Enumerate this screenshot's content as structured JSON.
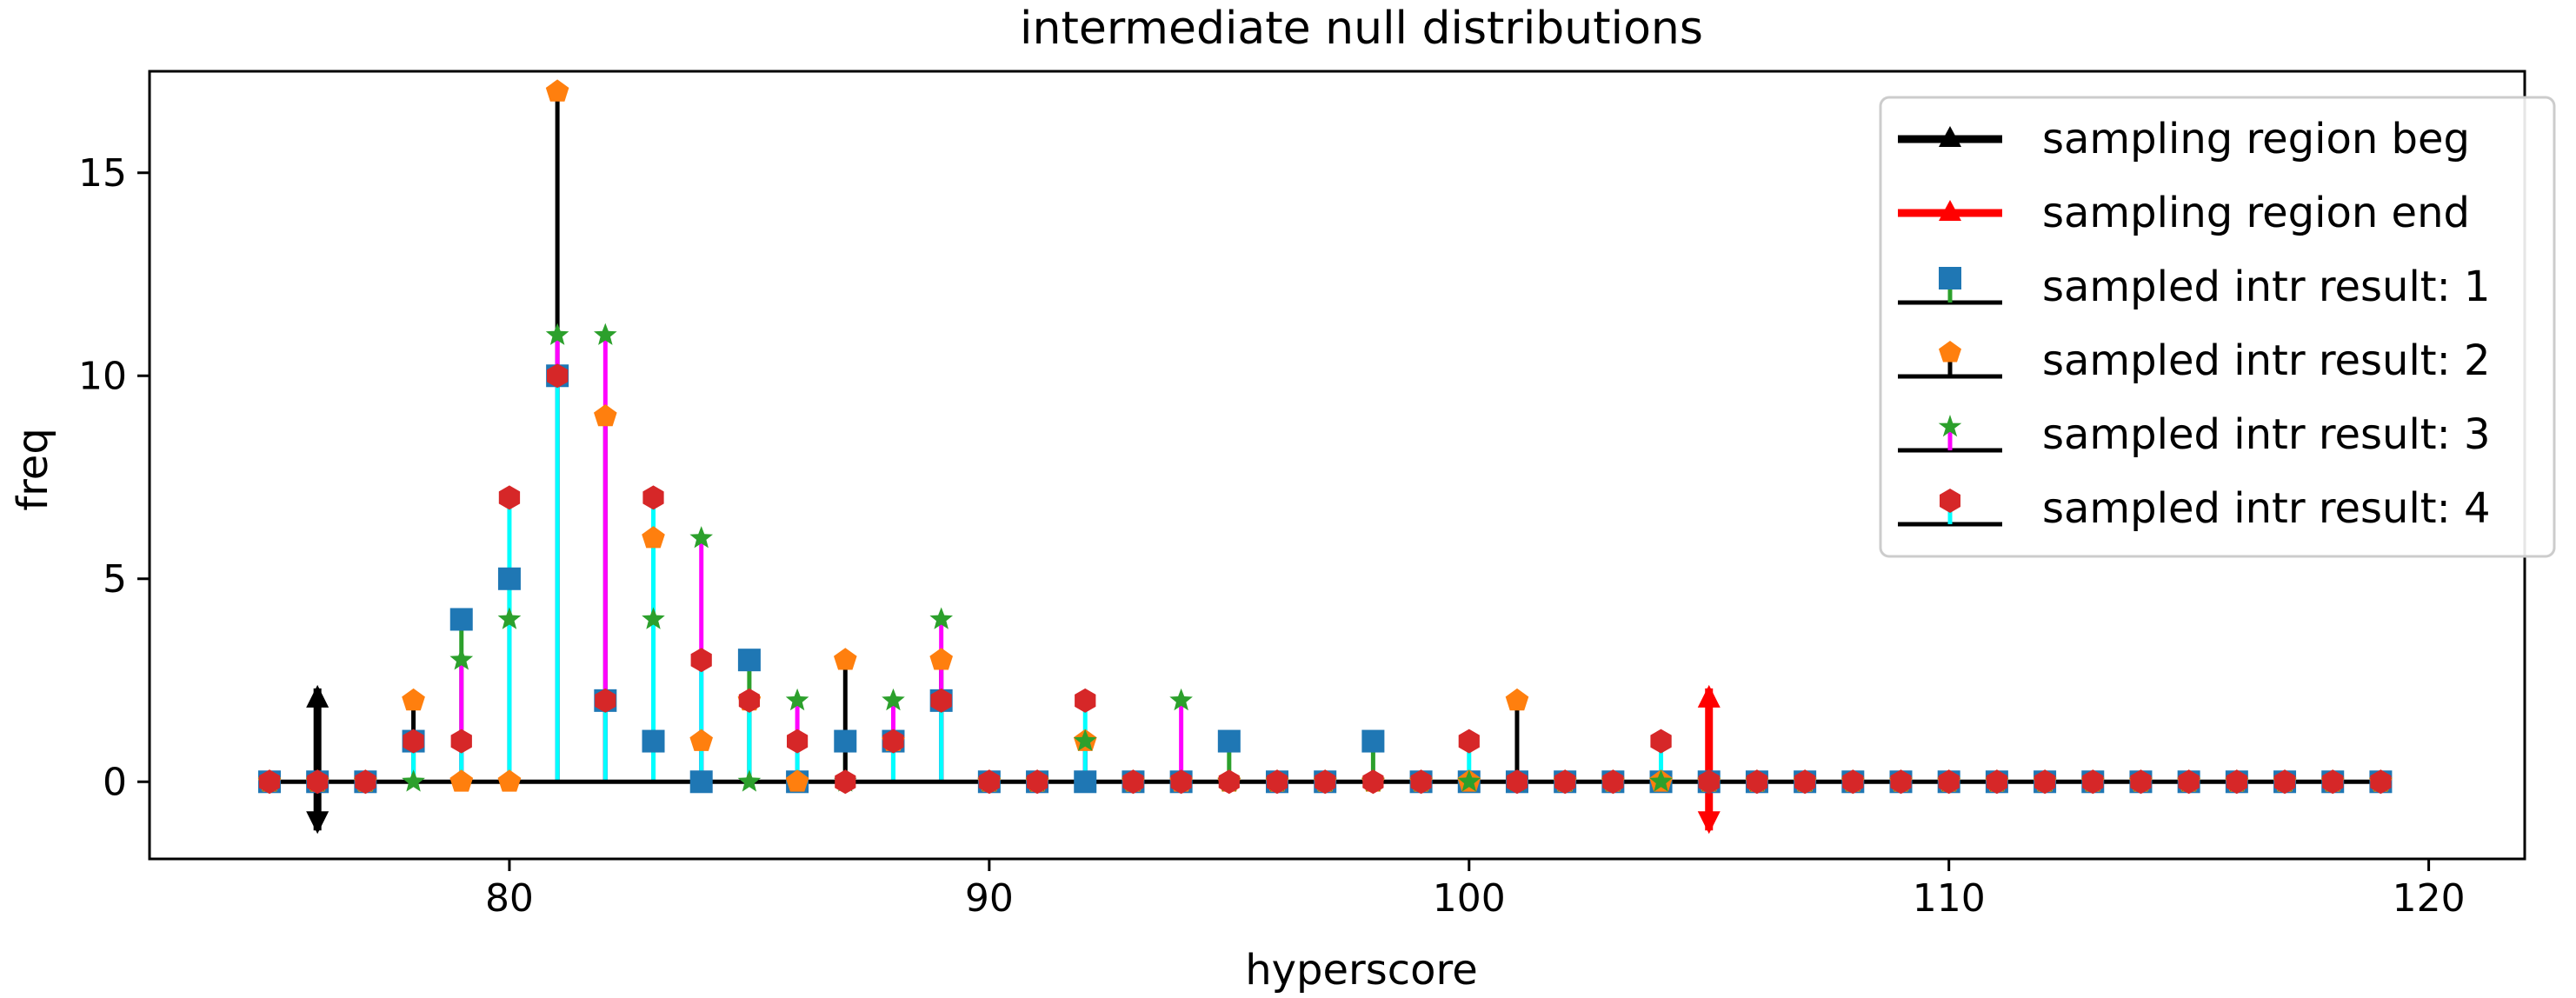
{
  "chart_data": {
    "type": "stem",
    "title": "intermediate null distributions",
    "xlabel": "hyperscore",
    "ylabel": "freq",
    "xlim": [
      72.5,
      122
    ],
    "ylim": [
      -1.9,
      17.5
    ],
    "xticks": [
      80,
      90,
      100,
      110,
      120
    ],
    "yticks": [
      0,
      5,
      10,
      15
    ],
    "x": [
      75,
      76,
      77,
      78,
      79,
      80,
      81,
      82,
      83,
      84,
      85,
      86,
      87,
      88,
      89,
      90,
      91,
      92,
      93,
      94,
      95,
      96,
      97,
      98,
      99,
      100,
      101,
      102,
      103,
      104,
      105,
      106,
      107,
      108,
      109,
      110,
      111,
      112,
      113,
      114,
      115,
      116,
      117,
      118,
      119
    ],
    "series": [
      {
        "name": "sampled intr result: 1",
        "marker": "square",
        "marker_color": "#1f77b4",
        "stem_color": "#2ca02c",
        "values": [
          0,
          0,
          0,
          1,
          4,
          5,
          10,
          2,
          1,
          0,
          3,
          0,
          1,
          1,
          2,
          0,
          0,
          0,
          0,
          0,
          1,
          0,
          0,
          1,
          0,
          0,
          0,
          0,
          0,
          0,
          0,
          0,
          0,
          0,
          0,
          0,
          0,
          0,
          0,
          0,
          0,
          0,
          0,
          0,
          0
        ]
      },
      {
        "name": "sampled intr result: 2",
        "marker": "pentagon",
        "marker_color": "#ff7f0e",
        "stem_color": "#000000",
        "values": [
          0,
          0,
          0,
          2,
          0,
          0,
          17,
          9,
          6,
          1,
          2,
          0,
          3,
          1,
          3,
          0,
          0,
          1,
          0,
          0,
          0,
          0,
          0,
          0,
          0,
          0,
          2,
          0,
          0,
          0,
          0,
          0,
          0,
          0,
          0,
          0,
          0,
          0,
          0,
          0,
          0,
          0,
          0,
          0,
          0
        ]
      },
      {
        "name": "sampled intr result: 3",
        "marker": "star",
        "marker_color": "#2ca02c",
        "stem_color": "#ff00ff",
        "values": [
          0,
          0,
          0,
          0,
          3,
          4,
          11,
          11,
          4,
          6,
          0,
          2,
          0,
          2,
          4,
          0,
          0,
          1,
          0,
          2,
          0,
          0,
          0,
          0,
          0,
          0,
          0,
          0,
          0,
          0,
          0,
          0,
          0,
          0,
          0,
          0,
          0,
          0,
          0,
          0,
          0,
          0,
          0,
          0,
          0
        ]
      },
      {
        "name": "sampled intr result: 4",
        "marker": "hexagon",
        "marker_color": "#d62728",
        "stem_color": "#00ffff",
        "values": [
          0,
          0,
          0,
          1,
          1,
          7,
          10,
          2,
          7,
          3,
          2,
          1,
          0,
          1,
          2,
          0,
          0,
          2,
          0,
          0,
          0,
          0,
          0,
          0,
          0,
          1,
          0,
          0,
          0,
          1,
          0,
          0,
          0,
          0,
          0,
          0,
          0,
          0,
          0,
          0,
          0,
          0,
          0,
          0,
          0
        ]
      }
    ],
    "region_markers": [
      {
        "name": "sampling region beg",
        "x": 76,
        "y_from": -1.2,
        "y_to": 2.3,
        "color": "#000000"
      },
      {
        "name": "sampling region end",
        "x": 105,
        "y_from": -1.2,
        "y_to": 2.3,
        "color": "#ff0000"
      }
    ],
    "baseline": 0,
    "legend_position": "top-right"
  }
}
